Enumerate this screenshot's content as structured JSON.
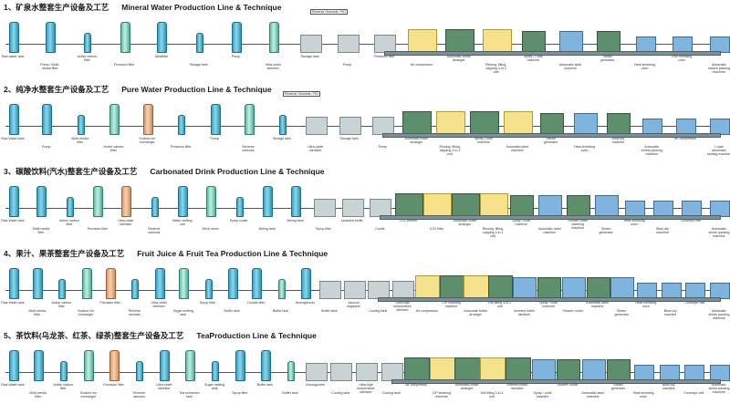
{
  "sections": [
    {
      "cn": "1、矿泉水整套生产设备及工艺",
      "en": "Mineral Water Production Line & Technique",
      "note": "Reverse Osmosis / RO",
      "labels": [
        "Raw water tank",
        "Pump / Multi-media filter",
        "Active carbon filter",
        "Precision filter",
        "Ultrafilter",
        "Storage tank",
        "Pump",
        "Ultra-violet sterilizer",
        "Storage tank",
        "Pump",
        "Precision filter",
        "Air compressor",
        "Automatic bottle arranger",
        "Rinsing, filling, capping 3-in-1 unit",
        "Spray / Code machine",
        "Automatic label machine",
        "Steam generator",
        "Heat shrinking oven",
        "Film shrinking oven",
        "Automatic stretch packing machine"
      ]
    },
    {
      "cn": "2、纯净水整套生产设备及工艺",
      "en": "Pure Water Production Line & Technique",
      "note": "Reverse Osmosis / RO",
      "labels": [
        "Raw Water tank",
        "Pump",
        "Multi-media filter",
        "Active carbon filter",
        "Sodium ion exchanger",
        "Precision filter",
        "Pump",
        "Reverse osmosis",
        "Storage tank",
        "Ultra-violet sterilizer",
        "Storage tank",
        "Pump",
        "Automatic bottle arranger",
        "Rinsing, filling, capping 3-in-1 unit",
        "Spray / code machine",
        "Automatic label machine",
        "Steam generator",
        "Heat shrinking oven",
        "Blow dry machine",
        "Automatic shrink packing machine",
        "Air compressor",
        "L-type automatic sealing machine"
      ]
    },
    {
      "cn": "3、碳酸饮料(汽水)整套生产设备及工艺",
      "en": "Carbonated Drink Production Line & Technique",
      "note": "",
      "labels": [
        "Raw Water tank",
        "Multi-media filter",
        "Active carbon filter",
        "Precision filter",
        "Ultra-violet sterilizer",
        "Reverse osmosis",
        "Water chilling unit",
        "Drink mixer",
        "Syrup cooler",
        "Mixing tank",
        "Mixing tank",
        "Syrup filter",
        "Jacketed kettle",
        "Cooler",
        "CO2 purifier",
        "CO2 filter",
        "Automatic bottle arranger",
        "Rinsing, filling, capping 3-in-1 unit",
        "Spray / code machine",
        "Automatic label machine",
        "Shower bottle warming machine",
        "Steam generator",
        "Heat shrinking oven",
        "Blow dry machine",
        "Conveyor belt",
        "Automatic shrink packing machine"
      ]
    },
    {
      "cn": "4、果汁、果茶整套生产设备及工艺",
      "en": "Fruit Juice & Fruit Tea Production Line & Technique",
      "note": "",
      "labels": [
        "Raw Water tank",
        "Multi-media filter",
        "Active carbon filter",
        "Sodium ion exchanger",
        "Precision filter",
        "Reverse osmosis",
        "Ultra-violet sterilizer",
        "Sugar melting tank",
        "Syrup filter",
        "Buffer tank",
        "Double filter",
        "Buffer tank",
        "Homogenizer",
        "Buffer tank",
        "Vacuum degasser",
        "Cooling tank",
        "Ultra-high temperature sterilizer",
        "Air compressor",
        "CIP cleaning machine",
        "Automatic bottle arranger",
        "Hot filling 3-in-1 unit",
        "Inverted bottle sterilizer",
        "Spray / code machine",
        "Shower cooler",
        "Automatic label machine",
        "Steam generator",
        "Heat shrinking oven",
        "Blow dry machine",
        "Conveyor belt",
        "Automatic shrink packing machine"
      ]
    },
    {
      "cn": "5、茶饮料(乌龙茶、红茶、绿茶)整套生产设备及工艺",
      "en": "TeaProduction Line & Technique",
      "note": "",
      "labels": [
        "Raw Water tank",
        "Multi-media filter",
        "Active carbon filter",
        "Sodium ion exchanger",
        "Precision filter",
        "Reverse osmosis",
        "Ultra-violet sterilizer",
        "Tea extraction tank",
        "Sugar melting tank",
        "Syrup filter",
        "Buffer tank",
        "Buffer tank",
        "Homogenizer",
        "Cooling tank",
        "Ultra-high temperature sterilizer",
        "Cooling tank",
        "Air compressor",
        "CIP cleaning machine",
        "Automatic bottle arranger",
        "Hot filling 3-in-1 unit",
        "Inverted bottle sterilizer",
        "Spray / code machine",
        "Shower cooler",
        "Automatic label machine",
        "Steam generator",
        "Heat shrinking oven",
        "Blow dry machine",
        "Conveyor belt",
        "Automatic shrink packing machine"
      ]
    }
  ],
  "colors": {
    "tank": "#2fa7c8",
    "filler": "#f6e28a",
    "cooler": "#5e8f6c",
    "labeler": "#7fb4df",
    "conveyor": "#7d9097"
  }
}
